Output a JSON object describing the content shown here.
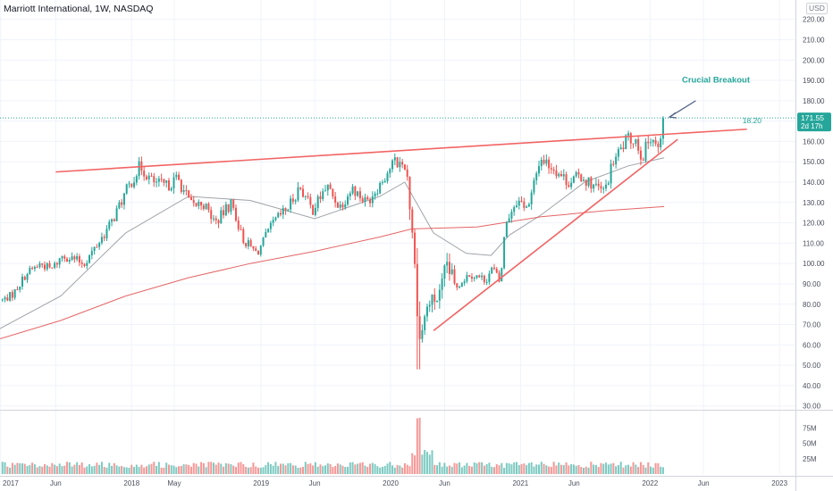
{
  "header": {
    "symbol_title": "Marriott International, 1W, NASDAQ",
    "currency": "USD"
  },
  "chart_data": {
    "type": "candlestick",
    "title": "Marriott International, 1W, NASDAQ",
    "currency": "USD",
    "x_ticks": [
      "2017",
      "Jun",
      "2018",
      "May",
      "2019",
      "Jun",
      "2020",
      "Jun",
      "2021",
      "Jun",
      "2022",
      "Jun",
      "2023"
    ],
    "y_ticks": [
      30,
      40,
      50,
      60,
      70,
      80,
      90,
      100,
      110,
      120,
      130,
      140,
      150,
      160,
      170,
      180,
      190,
      200,
      210,
      220
    ],
    "y_tick_labels": [
      "30.00",
      "40.00",
      "50.00",
      "60.00",
      "70.00",
      "80.00",
      "90.00",
      "100.00",
      "110.00",
      "120.00",
      "130.00",
      "140.00",
      "150.00",
      "160.00",
      "170.00",
      "180.00",
      "190.00",
      "200.00",
      "210.00",
      "220.00"
    ],
    "ylim": [
      29,
      226
    ],
    "xlim": [
      "2016-12-26",
      "2023-02-15"
    ],
    "volume_ticks": [
      "25M",
      "50M",
      "75M"
    ],
    "volume_max": 100,
    "current_price": {
      "label": "171.55",
      "value": 171.55,
      "countdown": "2d 17h",
      "color": "#26a69a"
    },
    "price_line_note": "18.20",
    "price_anchors": [
      [
        "2017-01-02",
        82
      ],
      [
        "2017-02-01",
        85
      ],
      [
        "2017-03-10",
        95
      ],
      [
        "2017-04-20",
        100
      ],
      [
        "2017-05-20",
        97
      ],
      [
        "2017-06-20",
        104
      ],
      [
        "2017-07-25",
        102
      ],
      [
        "2017-08-20",
        100
      ],
      [
        "2017-09-25",
        109
      ],
      [
        "2017-11-05",
        120
      ],
      [
        "2017-12-15",
        135
      ],
      [
        "2018-01-25",
        148
      ],
      [
        "2018-03-01",
        140
      ],
      [
        "2018-04-10",
        138
      ],
      [
        "2018-05-10",
        142
      ],
      [
        "2018-06-20",
        128
      ],
      [
        "2018-07-20",
        130
      ],
      [
        "2018-08-25",
        120
      ],
      [
        "2018-10-10",
        130
      ],
      [
        "2018-11-10",
        112
      ],
      [
        "2018-12-20",
        105
      ],
      [
        "2019-02-05",
        120
      ],
      [
        "2019-03-20",
        128
      ],
      [
        "2019-04-20",
        138
      ],
      [
        "2019-05-25",
        126
      ],
      [
        "2019-07-05",
        138
      ],
      [
        "2019-08-10",
        128
      ],
      [
        "2019-09-15",
        137
      ],
      [
        "2019-10-25",
        130
      ],
      [
        "2019-12-05",
        140
      ],
      [
        "2020-01-10",
        150
      ],
      [
        "2020-02-14",
        148
      ],
      [
        "2020-03-01",
        120
      ],
      [
        "2020-03-22",
        62
      ],
      [
        "2020-04-15",
        80
      ],
      [
        "2020-05-20",
        84
      ],
      [
        "2020-06-08",
        100
      ],
      [
        "2020-06-30",
        88
      ],
      [
        "2020-08-10",
        95
      ],
      [
        "2020-09-25",
        92
      ],
      [
        "2020-10-15",
        98
      ],
      [
        "2020-11-05",
        90
      ],
      [
        "2020-11-20",
        120
      ],
      [
        "2020-12-20",
        131
      ],
      [
        "2021-01-25",
        128
      ],
      [
        "2021-02-25",
        152
      ],
      [
        "2021-04-05",
        147
      ],
      [
        "2021-05-15",
        140
      ],
      [
        "2021-06-20",
        143
      ],
      [
        "2021-07-20",
        139
      ],
      [
        "2021-08-25",
        135
      ],
      [
        "2021-09-20",
        150
      ],
      [
        "2021-10-25",
        160
      ],
      [
        "2021-11-20",
        162
      ],
      [
        "2021-12-10",
        152
      ],
      [
        "2022-01-05",
        164
      ],
      [
        "2022-01-25",
        155
      ],
      [
        "2022-02-10",
        171.55
      ]
    ],
    "moving_averages": [
      {
        "color": "#8f9399",
        "points": [
          [
            "2016-12-26",
            68
          ],
          [
            "2017-06-15",
            84
          ],
          [
            "2017-12-15",
            115
          ],
          [
            "2018-06-10",
            133
          ],
          [
            "2018-12-01",
            131
          ],
          [
            "2019-06-01",
            122
          ],
          [
            "2019-12-01",
            133
          ],
          [
            "2020-02-10",
            140
          ],
          [
            "2020-05-01",
            115
          ],
          [
            "2020-08-01",
            105
          ],
          [
            "2020-10-10",
            104
          ],
          [
            "2020-12-01",
            114
          ],
          [
            "2021-03-01",
            124
          ],
          [
            "2021-07-01",
            140
          ],
          [
            "2021-11-01",
            148
          ],
          [
            "2022-02-10",
            152
          ]
        ]
      },
      {
        "color": "#e04a4a",
        "points": [
          [
            "2016-12-26",
            63
          ],
          [
            "2017-06-15",
            72
          ],
          [
            "2017-12-15",
            84
          ],
          [
            "2018-06-10",
            93
          ],
          [
            "2018-12-01",
            100
          ],
          [
            "2019-06-01",
            106
          ],
          [
            "2019-12-01",
            113
          ],
          [
            "2020-03-01",
            117
          ],
          [
            "2020-09-01",
            118
          ],
          [
            "2021-03-01",
            123
          ],
          [
            "2021-09-01",
            126
          ],
          [
            "2022-02-10",
            128
          ]
        ]
      }
    ],
    "trendlines": [
      {
        "name": "resistance",
        "color": "#f26464",
        "from": [
          "2017-06-01",
          145
        ],
        "to": [
          "2022-10-01",
          166
        ]
      },
      {
        "name": "support",
        "color": "#f26464",
        "from": [
          "2020-05-01",
          67
        ],
        "to": [
          "2022-03-20",
          161
        ]
      }
    ],
    "annotations": [
      {
        "text": "Crucial Breakout",
        "color": "#26a69a",
        "at": [
          "2022-04-01",
          189
        ]
      }
    ],
    "up_color": "#26a69a",
    "down_color": "#ef5350",
    "grid": true
  }
}
